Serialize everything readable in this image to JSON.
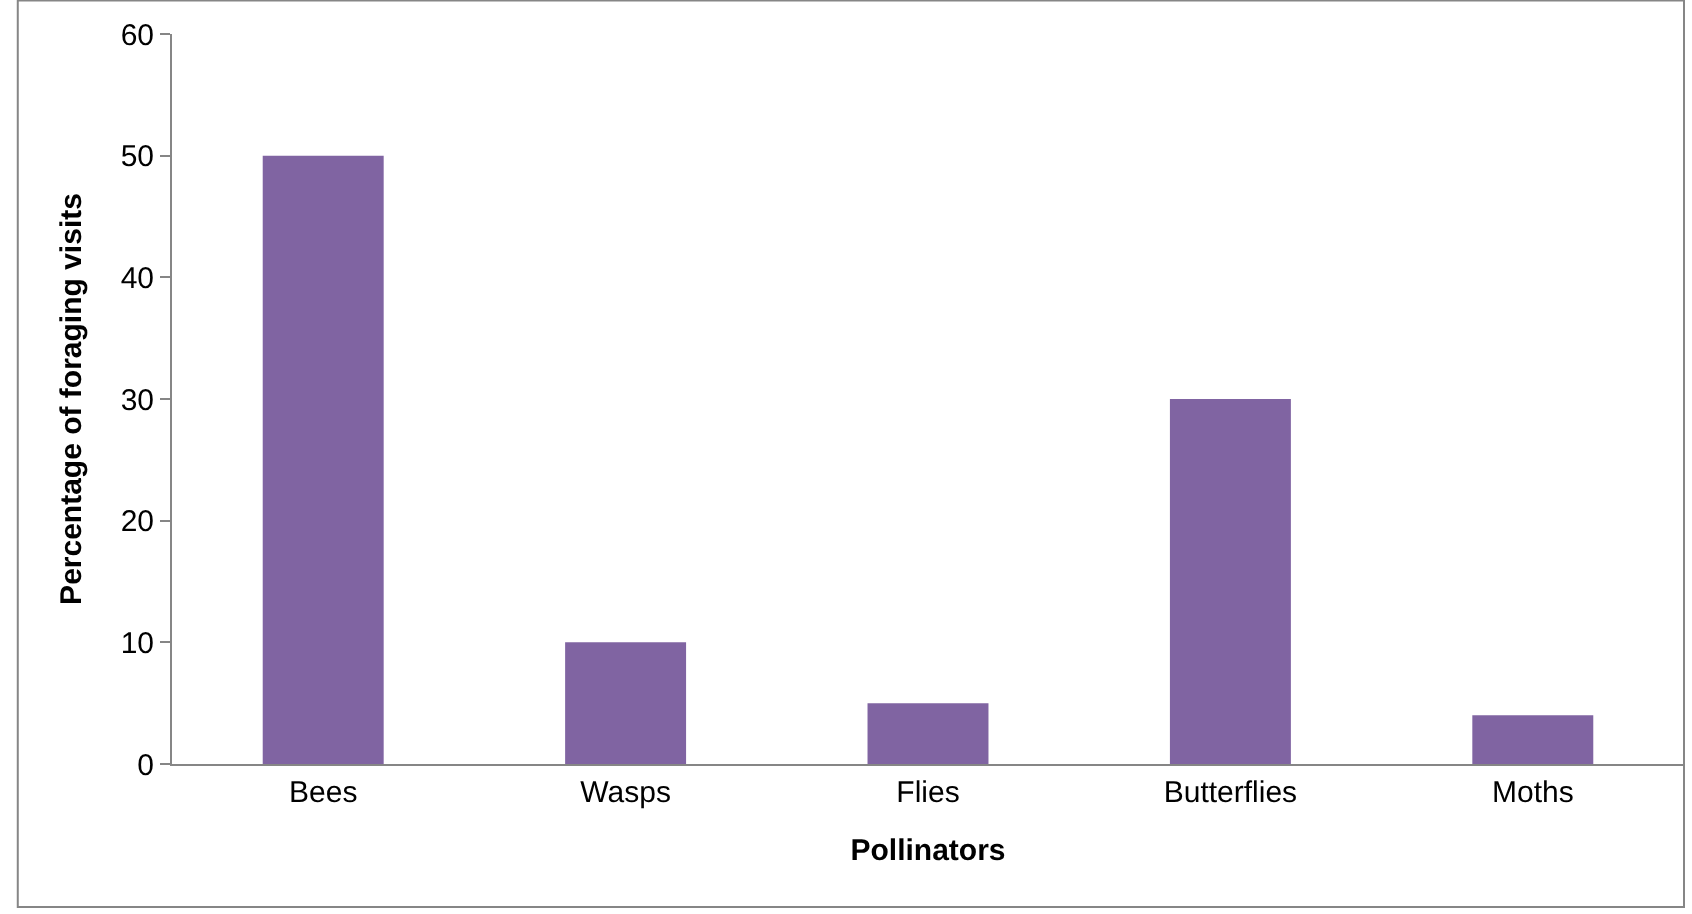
{
  "chart_data": {
    "type": "bar",
    "xlabel": "Pollinators",
    "ylabel": "Percentage of foraging visits",
    "categories": [
      "Bees",
      "Wasps",
      "Flies",
      "Butterflies",
      "Moths"
    ],
    "values": [
      50,
      10,
      5,
      30,
      4
    ],
    "color": "#8064a2",
    "ylim": [
      0,
      60
    ],
    "yticks": [
      0,
      10,
      20,
      30,
      40,
      50,
      60
    ],
    "grid": false,
    "legend": false
  }
}
